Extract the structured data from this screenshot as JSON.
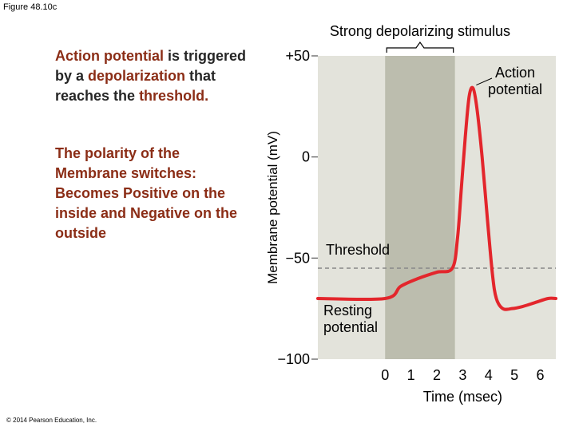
{
  "figure_label": "Figure 48.10c",
  "copyright": "© 2014 Pearson Education, Inc.",
  "text": {
    "p1_a": "Action potential",
    "p1_b": " is triggered by a ",
    "p1_c": "depolarization",
    "p1_d": " that reaches the ",
    "p1_e": "threshold.",
    "p2": "The polarity of the Membrane switches: Becomes Positive on the inside and Negative on the outside"
  },
  "colors": {
    "plot_bg": "#e3e3db",
    "shade": "#bcbdae",
    "trace": "#e3262c",
    "threshold_line": "#888888",
    "text_accent": "#8b2d16"
  },
  "chart_data": {
    "type": "line",
    "title": "Strong depolarizing stimulus",
    "xlabel": "Time (msec)",
    "ylabel": "Membrane potential (mV)",
    "xlim": [
      -2.6,
      6.6
    ],
    "ylim": [
      -100,
      50
    ],
    "x_ticks": [
      0,
      1,
      2,
      3,
      4,
      5,
      6
    ],
    "x_tick_labels": [
      "0",
      "1",
      "2",
      "3",
      "4",
      "5",
      "6"
    ],
    "y_ticks": [
      50,
      0,
      -50,
      -100
    ],
    "y_tick_labels": [
      "+50",
      "0",
      "−50",
      "−100"
    ],
    "threshold_mv": -55,
    "stimulus_window": [
      0,
      2.7
    ],
    "series": [
      {
        "name": "Membrane potential",
        "x": [
          -2.6,
          0.0,
          0.6,
          1.3,
          2.0,
          2.6,
          2.8,
          2.95,
          3.1,
          3.25,
          3.4,
          3.55,
          3.75,
          3.95,
          4.15,
          4.3,
          4.55,
          4.9,
          5.3,
          5.8,
          6.3,
          6.6
        ],
        "y": [
          -70,
          -70,
          -64,
          -60,
          -57,
          -55,
          -40,
          -15,
          10,
          30,
          34,
          24,
          0,
          -30,
          -58,
          -70,
          -75,
          -75,
          -74,
          -72,
          -70,
          -70
        ]
      }
    ],
    "annotations": [
      {
        "text": "Action potential",
        "x": 3.4,
        "y": 34
      },
      {
        "text": "Threshold",
        "x": 1.3,
        "y": -55
      },
      {
        "text": "Resting potential",
        "x": -0.8,
        "y": -70
      }
    ]
  }
}
